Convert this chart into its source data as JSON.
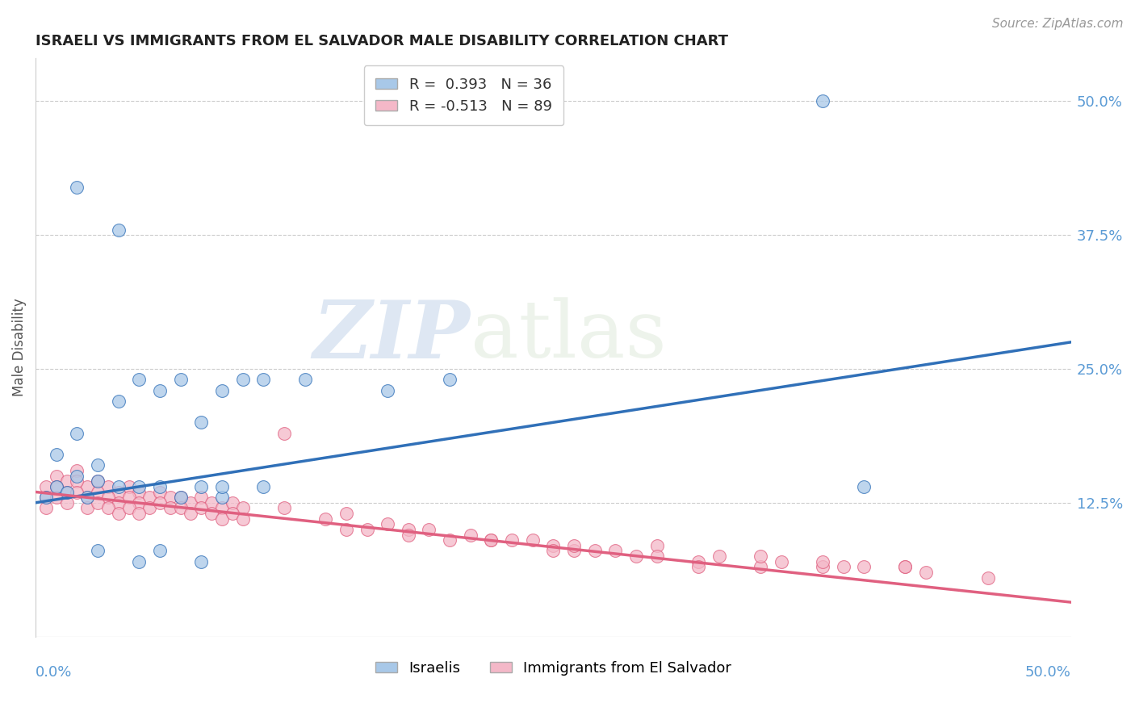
{
  "title": "ISRAELI VS IMMIGRANTS FROM EL SALVADOR MALE DISABILITY CORRELATION CHART",
  "source": "Source: ZipAtlas.com",
  "ylabel": "Male Disability",
  "ytick_labels": [
    "12.5%",
    "25.0%",
    "37.5%",
    "50.0%"
  ],
  "ytick_values": [
    0.125,
    0.25,
    0.375,
    0.5
  ],
  "xlim": [
    0.0,
    0.5
  ],
  "ylim": [
    0.0,
    0.54
  ],
  "legend_r1": "R =  0.393",
  "legend_n1": "N = 36",
  "legend_r2": "R = -0.513",
  "legend_n2": "N = 89",
  "color_israeli": "#a8c8e8",
  "color_salvador": "#f4b8c8",
  "color_israeli_line": "#3070b8",
  "color_salvador_line": "#e06080",
  "background_color": "#ffffff",
  "grid_color": "#cccccc",
  "watermark_zip": "ZIP",
  "watermark_atlas": "atlas",
  "isr_line_x0": 0.0,
  "isr_line_y0": 0.125,
  "isr_line_x1": 0.5,
  "isr_line_y1": 0.275,
  "sal_line_x0": 0.0,
  "sal_line_y0": 0.135,
  "sal_line_x1": 0.5,
  "sal_line_y1": 0.032,
  "isr_x": [
    0.005,
    0.01,
    0.015,
    0.02,
    0.025,
    0.03,
    0.04,
    0.05,
    0.06,
    0.07,
    0.08,
    0.09,
    0.01,
    0.02,
    0.03,
    0.04,
    0.05,
    0.06,
    0.08,
    0.1,
    0.07,
    0.09,
    0.11,
    0.02,
    0.04,
    0.13,
    0.17,
    0.2,
    0.38,
    0.4,
    0.05,
    0.06,
    0.08,
    0.03,
    0.09,
    0.11
  ],
  "isr_y": [
    0.13,
    0.14,
    0.135,
    0.15,
    0.13,
    0.145,
    0.14,
    0.14,
    0.14,
    0.13,
    0.14,
    0.13,
    0.17,
    0.19,
    0.16,
    0.22,
    0.24,
    0.23,
    0.2,
    0.24,
    0.24,
    0.23,
    0.24,
    0.42,
    0.38,
    0.24,
    0.23,
    0.24,
    0.5,
    0.14,
    0.07,
    0.08,
    0.07,
    0.08,
    0.14,
    0.14
  ],
  "sal_x": [
    0.005,
    0.01,
    0.015,
    0.02,
    0.025,
    0.03,
    0.035,
    0.04,
    0.045,
    0.05,
    0.055,
    0.06,
    0.065,
    0.07,
    0.075,
    0.08,
    0.085,
    0.09,
    0.095,
    0.1,
    0.005,
    0.01,
    0.015,
    0.02,
    0.025,
    0.03,
    0.035,
    0.04,
    0.045,
    0.05,
    0.055,
    0.06,
    0.065,
    0.07,
    0.075,
    0.08,
    0.085,
    0.09,
    0.095,
    0.1,
    0.005,
    0.01,
    0.015,
    0.02,
    0.025,
    0.03,
    0.035,
    0.04,
    0.045,
    0.05,
    0.12,
    0.14,
    0.16,
    0.18,
    0.2,
    0.22,
    0.24,
    0.26,
    0.28,
    0.3,
    0.12,
    0.15,
    0.17,
    0.19,
    0.21,
    0.23,
    0.25,
    0.27,
    0.29,
    0.32,
    0.35,
    0.38,
    0.4,
    0.42,
    0.35,
    0.38,
    0.42,
    0.3,
    0.32,
    0.25,
    0.15,
    0.18,
    0.22,
    0.26,
    0.33,
    0.36,
    0.39,
    0.43,
    0.46
  ],
  "sal_y": [
    0.14,
    0.15,
    0.145,
    0.155,
    0.14,
    0.145,
    0.14,
    0.135,
    0.14,
    0.135,
    0.13,
    0.135,
    0.13,
    0.13,
    0.125,
    0.13,
    0.125,
    0.12,
    0.125,
    0.12,
    0.13,
    0.14,
    0.135,
    0.145,
    0.13,
    0.135,
    0.13,
    0.125,
    0.13,
    0.125,
    0.12,
    0.125,
    0.12,
    0.12,
    0.115,
    0.12,
    0.115,
    0.11,
    0.115,
    0.11,
    0.12,
    0.13,
    0.125,
    0.135,
    0.12,
    0.125,
    0.12,
    0.115,
    0.12,
    0.115,
    0.19,
    0.11,
    0.1,
    0.1,
    0.09,
    0.09,
    0.09,
    0.08,
    0.08,
    0.085,
    0.12,
    0.115,
    0.105,
    0.1,
    0.095,
    0.09,
    0.085,
    0.08,
    0.075,
    0.07,
    0.065,
    0.065,
    0.065,
    0.065,
    0.075,
    0.07,
    0.065,
    0.075,
    0.065,
    0.08,
    0.1,
    0.095,
    0.09,
    0.085,
    0.075,
    0.07,
    0.065,
    0.06,
    0.055
  ]
}
